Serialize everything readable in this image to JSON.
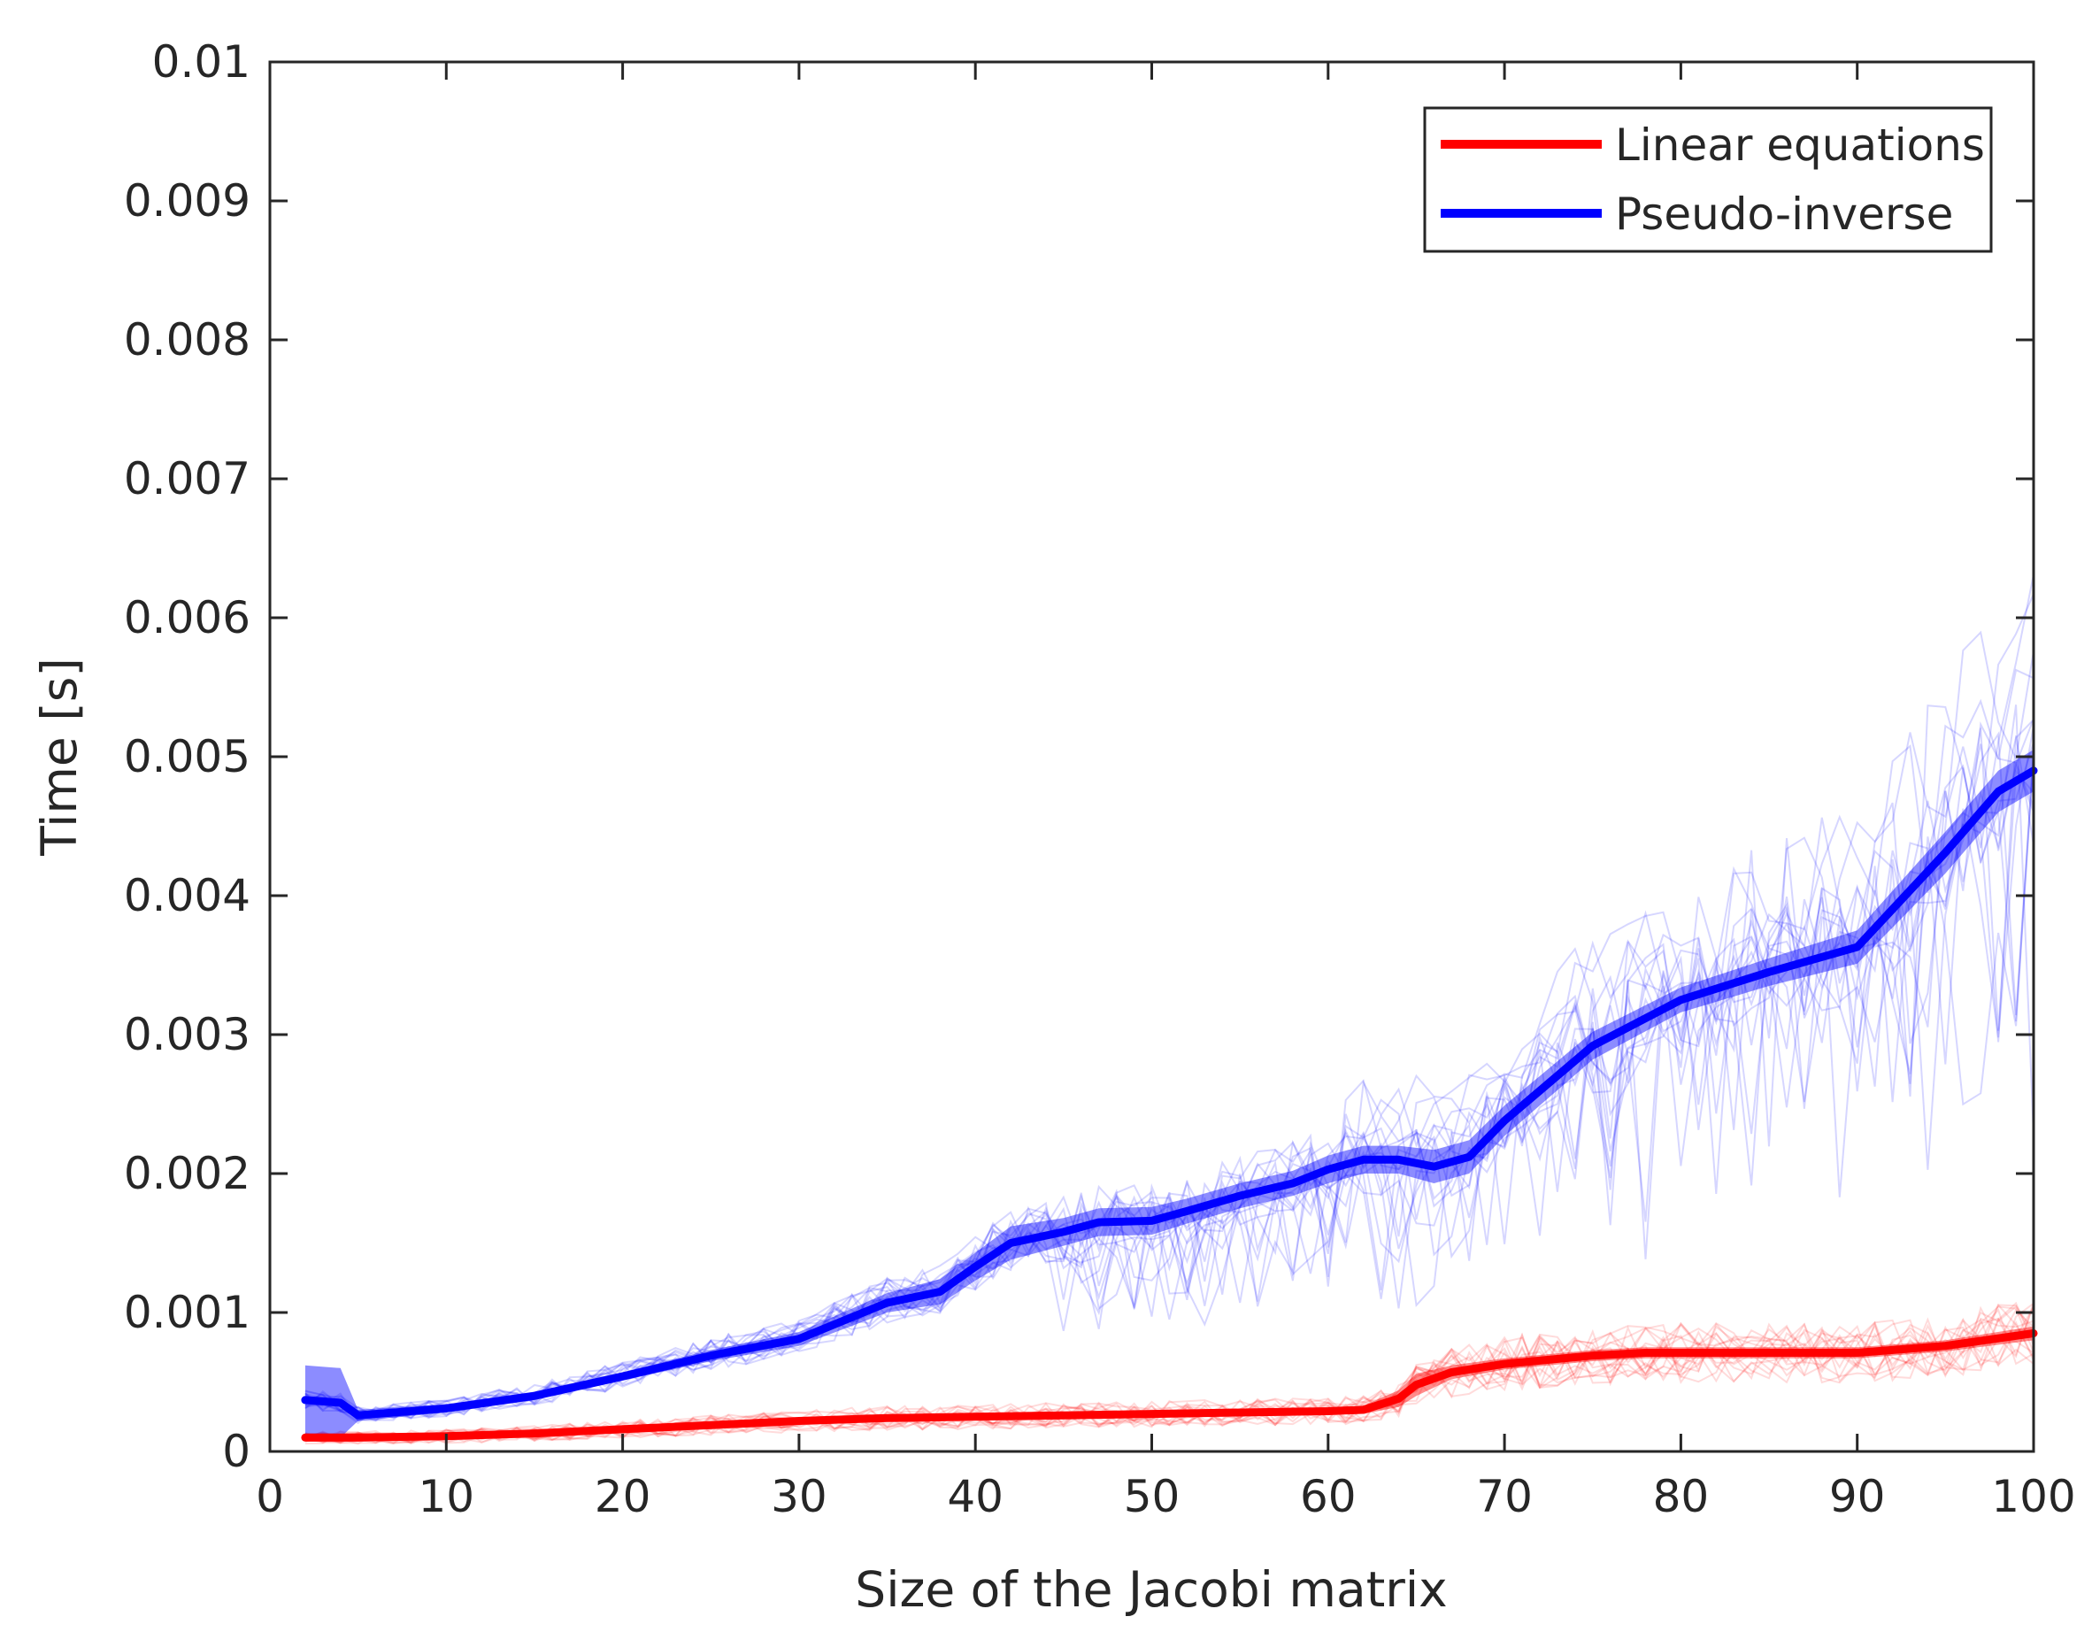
{
  "chart_data": {
    "type": "line",
    "title": "",
    "xlabel": "Size of the Jacobi matrix",
    "ylabel": "Time [s]",
    "xlim": [
      0,
      100
    ],
    "ylim": [
      0,
      0.01
    ],
    "x_ticks": [
      0,
      10,
      20,
      30,
      40,
      50,
      60,
      70,
      80,
      90,
      100
    ],
    "x_tick_labels": [
      "0",
      "10",
      "20",
      "30",
      "40",
      "50",
      "60",
      "70",
      "80",
      "90",
      "100"
    ],
    "y_ticks": [
      0,
      0.001,
      0.002,
      0.003,
      0.004,
      0.005,
      0.006,
      0.007,
      0.008,
      0.009,
      0.01
    ],
    "y_tick_labels": [
      "0",
      "0.001",
      "0.002",
      "0.003",
      "0.004",
      "0.005",
      "0.006",
      "0.007",
      "0.008",
      "0.009",
      "0.01"
    ],
    "grid": false,
    "legend_position": "top-right",
    "series": [
      {
        "name": "Linear equations",
        "color": "#ff0000",
        "x": [
          2,
          5,
          10,
          15,
          20,
          25,
          30,
          35,
          40,
          45,
          50,
          55,
          60,
          62,
          64,
          65,
          67,
          70,
          75,
          78,
          80,
          85,
          90,
          95,
          100
        ],
        "values": [
          0.0001,
          0.0001,
          0.00011,
          0.00013,
          0.00016,
          0.00019,
          0.00022,
          0.00024,
          0.00025,
          0.00026,
          0.00027,
          0.00028,
          0.00029,
          0.0003,
          0.00038,
          0.00048,
          0.00057,
          0.00063,
          0.00069,
          0.00071,
          0.00071,
          0.00071,
          0.00071,
          0.00076,
          0.00085
        ],
        "band": [
          3e-05,
          3e-05,
          2e-05,
          2e-05,
          2e-05,
          2e-05,
          2e-05,
          2e-05,
          2e-05,
          2e-05,
          2e-05,
          2e-05,
          2e-05,
          3e-05,
          6e-05,
          8e-05,
          5e-05,
          4e-05,
          4e-05,
          4e-05,
          4e-05,
          4e-05,
          4e-05,
          4e-05,
          5e-05
        ]
      },
      {
        "name": "Pseudo-inverse",
        "color": "#0000ff",
        "x": [
          2,
          4,
          5,
          10,
          15,
          20,
          25,
          30,
          35,
          38,
          40,
          42,
          45,
          47,
          50,
          52,
          55,
          58,
          60,
          62,
          64,
          66,
          68,
          70,
          75,
          80,
          85,
          90,
          95,
          98,
          100
        ],
        "values": [
          0.00037,
          0.00035,
          0.00026,
          0.00031,
          0.0004,
          0.00054,
          0.00069,
          0.00081,
          0.00107,
          0.00115,
          0.00133,
          0.0015,
          0.00158,
          0.00165,
          0.00166,
          0.00173,
          0.00184,
          0.00193,
          0.00203,
          0.0021,
          0.0021,
          0.00205,
          0.00212,
          0.00238,
          0.00292,
          0.00325,
          0.00345,
          0.00363,
          0.00431,
          0.00475,
          0.0049
        ],
        "band": [
          0.00025,
          0.00025,
          4e-05,
          3e-05,
          3e-05,
          3e-05,
          4e-05,
          5e-05,
          7e-05,
          9e-05,
          0.0001,
          0.00012,
          0.0001,
          0.0001,
          0.0001,
          9e-05,
          9e-05,
          9e-05,
          0.0001,
          0.0001,
          0.0001,
          0.00012,
          0.00012,
          0.00011,
          0.0001,
          9e-05,
          0.0001,
          0.00012,
          0.00015,
          0.00015,
          0.00015
        ]
      }
    ]
  }
}
